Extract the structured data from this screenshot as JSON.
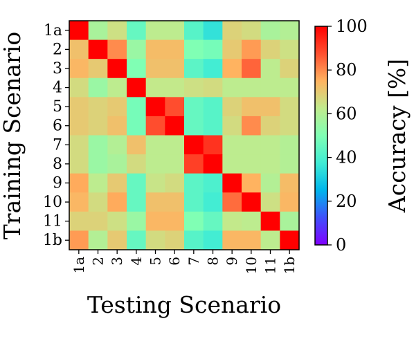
{
  "chart_data": {
    "type": "heatmap",
    "title": "",
    "xlabel": "Testing Scenario",
    "ylabel": "Training Scenario",
    "x_categories": [
      "1a",
      "2",
      "3",
      "4",
      "5",
      "6",
      "7",
      "8",
      "9",
      "10",
      "11",
      "1b"
    ],
    "y_categories": [
      "1a",
      "2",
      "3",
      "4",
      "5",
      "6",
      "7",
      "8",
      "9",
      "10",
      "11",
      "1b"
    ],
    "values": [
      [
        100,
        58,
        65,
        45,
        62,
        62,
        42,
        35,
        68,
        66,
        58,
        60
      ],
      [
        72,
        100,
        80,
        55,
        73,
        73,
        50,
        48,
        70,
        78,
        68,
        65
      ],
      [
        74,
        70,
        100,
        50,
        72,
        72,
        43,
        38,
        75,
        85,
        62,
        68
      ],
      [
        66,
        55,
        62,
        100,
        63,
        63,
        65,
        66,
        62,
        62,
        62,
        62
      ],
      [
        70,
        68,
        70,
        48,
        100,
        88,
        45,
        42,
        68,
        72,
        72,
        66
      ],
      [
        70,
        68,
        72,
        48,
        88,
        100,
        45,
        42,
        66,
        80,
        68,
        66
      ],
      [
        66,
        55,
        60,
        72,
        62,
        62,
        100,
        92,
        62,
        62,
        62,
        60
      ],
      [
        66,
        55,
        58,
        66,
        62,
        62,
        90,
        100,
        62,
        62,
        62,
        60
      ],
      [
        76,
        62,
        70,
        45,
        64,
        66,
        43,
        40,
        100,
        75,
        60,
        73
      ],
      [
        74,
        66,
        76,
        45,
        72,
        72,
        43,
        38,
        84,
        100,
        65,
        74
      ],
      [
        68,
        68,
        65,
        55,
        74,
        74,
        50,
        45,
        63,
        62,
        100,
        58
      ],
      [
        78,
        60,
        70,
        45,
        66,
        68,
        42,
        38,
        74,
        74,
        62,
        100
      ]
    ],
    "colorbar": {
      "label": "Accuracy [%]",
      "range": [
        0,
        100
      ],
      "ticks": [
        "0",
        "20",
        "40",
        "60",
        "80",
        "100"
      ],
      "colormap": "rainbow"
    }
  }
}
